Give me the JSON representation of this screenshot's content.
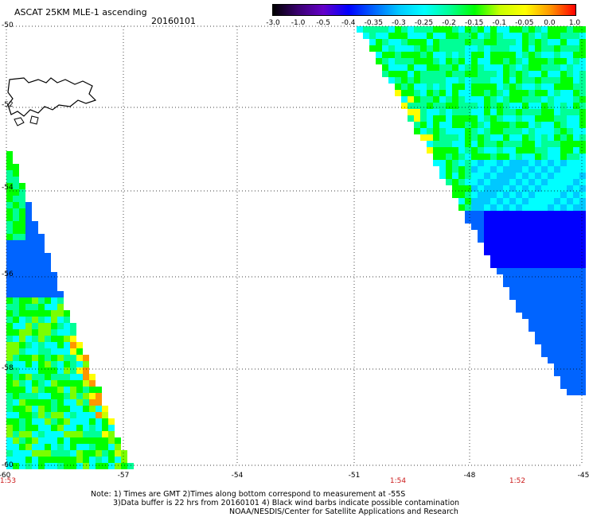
{
  "header": {
    "title": "ASCAT 25KM MLE-1 ascending",
    "date": "20160101"
  },
  "colorbar": {
    "labels": [
      "-3.0",
      "-1.0",
      "-0.5",
      "-0.4",
      "-0.35",
      "-0.3",
      "-0.25",
      "-0.2",
      "-0.15",
      "-0.1",
      "-0.05",
      "0.0",
      "1.0"
    ],
    "colors": [
      "#000000",
      "#3a0070",
      "#6400c8",
      "#0000ff",
      "#0064ff",
      "#00c8ff",
      "#00ffff",
      "#00ff96",
      "#00ff00",
      "#c8ff00",
      "#ffff00",
      "#ff9600",
      "#ff0000"
    ]
  },
  "map": {
    "lat_labels": [
      "-50",
      "-52",
      "-54",
      "-56",
      "-58",
      "-60"
    ],
    "lon_labels": [
      "-60",
      "-57",
      "-54",
      "-51",
      "-48",
      "-45"
    ],
    "time_labels": [
      {
        "text": "1:53",
        "lon": -60
      },
      {
        "text": "1:54",
        "lon": -49.2
      },
      {
        "text": "1:52",
        "lon": -46.2
      }
    ]
  },
  "footer": {
    "note_line1": "Note: 1) Times are GMT 2)Times along bottom correspond to measurement at -55S",
    "note_line2": "3)Data buffer is 22 hrs from 20160101 4) Black wind barbs indicate possible contamination",
    "note_line3": "NOAA/NESDIS/Center for Satellite Applications and Research"
  }
}
